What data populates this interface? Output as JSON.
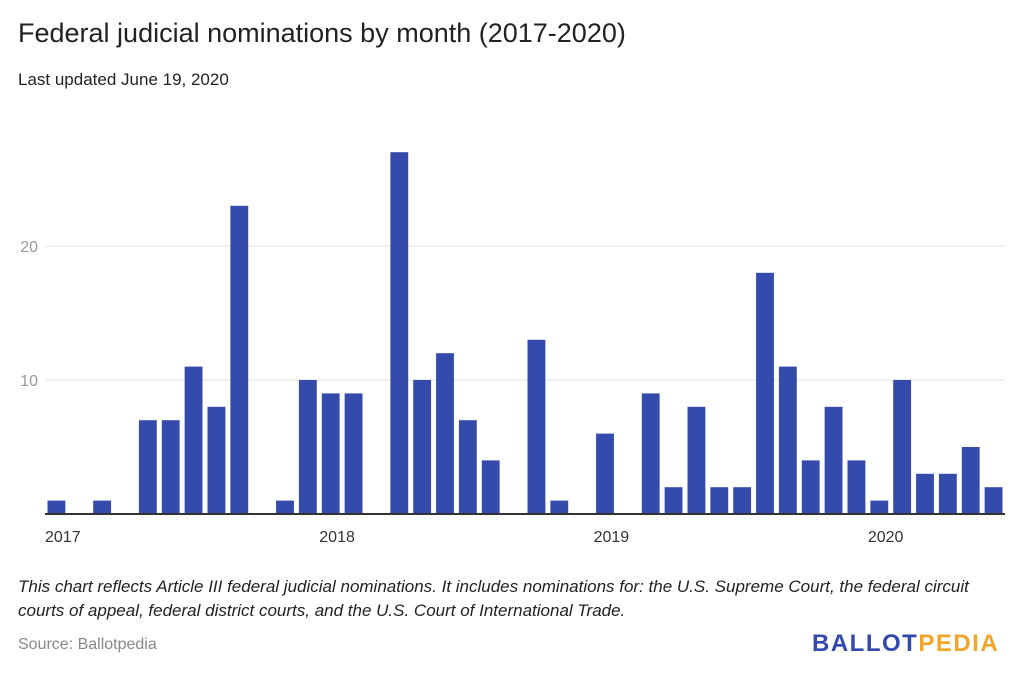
{
  "chart_data": {
    "type": "bar",
    "title": "Federal judicial nominations by month (2017-2020)",
    "subtitle": "Last updated June 19, 2020",
    "xlabel": "",
    "ylabel": "",
    "x_tick_labels": [
      "2017",
      "2018",
      "2019",
      "2020"
    ],
    "y_tick_labels": [
      "10",
      "20"
    ],
    "ylim": [
      0,
      28
    ],
    "grid": true,
    "bar_color": "#354bab",
    "categories": [
      "2017-01",
      "2017-02",
      "2017-03",
      "2017-04",
      "2017-05",
      "2017-06",
      "2017-07",
      "2017-08",
      "2017-09",
      "2017-10",
      "2017-11",
      "2017-12",
      "2018-01",
      "2018-02",
      "2018-03",
      "2018-04",
      "2018-05",
      "2018-06",
      "2018-07",
      "2018-08",
      "2018-09",
      "2018-10",
      "2018-11",
      "2018-12",
      "2019-01",
      "2019-02",
      "2019-03",
      "2019-04",
      "2019-05",
      "2019-06",
      "2019-07",
      "2019-08",
      "2019-09",
      "2019-10",
      "2019-11",
      "2019-12",
      "2020-01",
      "2020-02",
      "2020-03",
      "2020-04",
      "2020-05",
      "2020-06"
    ],
    "values": [
      1,
      0,
      1,
      0,
      7,
      7,
      11,
      8,
      23,
      0,
      1,
      10,
      9,
      9,
      0,
      27,
      10,
      12,
      7,
      4,
      0,
      13,
      1,
      0,
      6,
      0,
      9,
      2,
      8,
      2,
      2,
      18,
      11,
      4,
      8,
      4,
      1,
      10,
      3,
      3,
      5,
      2
    ]
  },
  "footer": {
    "note": "This chart reflects Article III federal judicial nominations. It includes nominations for: the U.S. Supreme Court, the federal circuit courts of appeal, federal district courts, and the U.S. Court of International Trade.",
    "source": "Source: Ballotpedia",
    "logo_part1": "BALLOT",
    "logo_part2": "PEDIA"
  }
}
